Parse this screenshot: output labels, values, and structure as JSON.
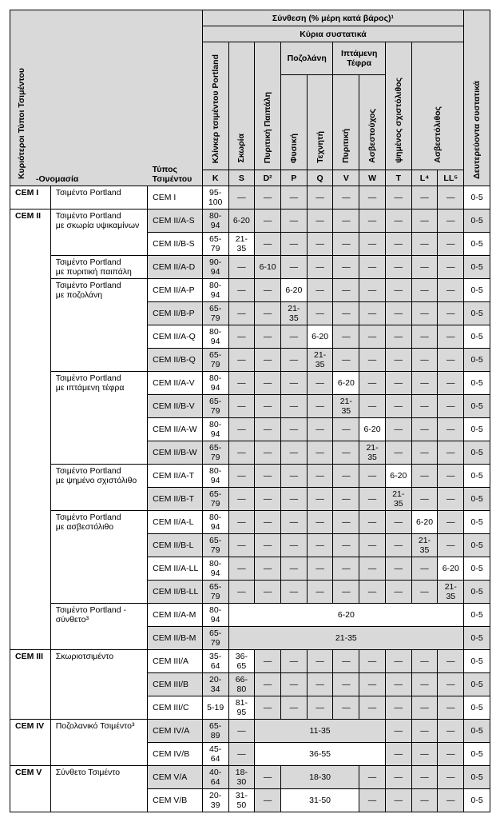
{
  "labels": {
    "compositionHeader": "Σύνθεση (% μέρη κατά βάρος)¹",
    "mainConstituents": "Κύρια συστατικά",
    "mainTypes": "Κυριότεροι Τύποι Τσιμέντου",
    "name": "-Ονομασία",
    "cementType": "Τύπος Τσιμέντου",
    "secondary": "Δευτερεύοντα συστατικά",
    "clinker": "Κλίνκερ τσιμέντου Portland",
    "slag": "Σκωρία",
    "silica": "Πυριτική Παιπάλη",
    "pozzolana": "Ποζολάνη",
    "flyAsh": "Ιπτάμενη Τέφρα",
    "burntShale": "ψημένος σχιστόλιθος",
    "limestone": "Ασβεστόλιθος",
    "natural": "Φυσική",
    "artificial": "Τεχνητή",
    "pyritic": "Πυριτική",
    "calcareous": "Ασβεστούχος",
    "K": "K",
    "S": "S",
    "D": "D²",
    "P": "P",
    "Q": "Q",
    "V": "V",
    "W": "W",
    "T": "T",
    "L": "L⁴",
    "LL": "LL⁵"
  },
  "groups": [
    {
      "id": "CEM I",
      "names": [
        [
          "Τσιμέντο Portland",
          1
        ]
      ]
    },
    {
      "id": "CEM II",
      "names": [
        [
          "Τσιμέντο Portland με σκωρία υψικαμίνων",
          2
        ],
        [
          "Τσιμέντο Portland με πυριτική παιπάλη",
          1
        ],
        [
          "Τσιμέντο Portland με ποζολάνη",
          4
        ],
        [
          "Τσιμέντο Portland με ιπτάμενη τέφρα",
          4
        ],
        [
          "Τσιμέντο Portland με ψημένο σχιστόλιθο",
          2
        ],
        [
          "Τσιμέντο Portland με ασβεστόλιθο",
          4
        ],
        [
          "Τσιμέντο Portland - σύνθετο³",
          2
        ]
      ]
    },
    {
      "id": "CEM III",
      "names": [
        [
          "Σκωριοτσιμέντο",
          3
        ]
      ]
    },
    {
      "id": "CEM IV",
      "names": [
        [
          "Ποζολανικό Τσιμέντο³",
          2
        ]
      ]
    },
    {
      "id": "CEM V",
      "names": [
        [
          "Σύνθετο Τσιμέντο",
          2
        ]
      ]
    }
  ],
  "rows": [
    [
      "CEM I",
      [
        "95-100",
        "—",
        "—",
        "—",
        "—",
        "—",
        "—",
        "—",
        "—",
        "—"
      ],
      "0-5",
      0
    ],
    [
      "CEM II/A-S",
      [
        "80-94",
        "6-20",
        "—",
        "—",
        "—",
        "—",
        "—",
        "—",
        "—",
        "—"
      ],
      "0-5",
      1
    ],
    [
      "CEM II/B-S",
      [
        "65-79",
        "21-35",
        "—",
        "—",
        "—",
        "—",
        "—",
        "—",
        "—",
        "—"
      ],
      "0-5",
      0
    ],
    [
      "CEM II/A-D",
      [
        "90-94",
        "—",
        "6-10",
        "—",
        "—",
        "—",
        "—",
        "—",
        "—",
        "—"
      ],
      "0-5",
      1
    ],
    [
      "CEM II/A-P",
      [
        "80-94",
        "—",
        "—",
        "6-20",
        "—",
        "—",
        "—",
        "—",
        "—",
        "—"
      ],
      "0-5",
      0
    ],
    [
      "CEM II/B-P",
      [
        "65-79",
        "—",
        "—",
        "21-35",
        "—",
        "—",
        "—",
        "—",
        "—",
        "—"
      ],
      "0-5",
      1
    ],
    [
      "CEM II/A-Q",
      [
        "80-94",
        "—",
        "—",
        "—",
        "6-20",
        "—",
        "—",
        "—",
        "—",
        "—"
      ],
      "0-5",
      0
    ],
    [
      "CEM II/B-Q",
      [
        "65-79",
        "—",
        "—",
        "—",
        "21-35",
        "—",
        "—",
        "—",
        "—",
        "—"
      ],
      "0-5",
      1
    ],
    [
      "CEM II/A-V",
      [
        "80-94",
        "—",
        "—",
        "—",
        "—",
        "6-20",
        "—",
        "—",
        "—",
        "—"
      ],
      "0-5",
      0
    ],
    [
      "CEM II/B-V",
      [
        "65-79",
        "—",
        "—",
        "—",
        "—",
        "21-35",
        "—",
        "—",
        "—",
        "—"
      ],
      "0-5",
      1
    ],
    [
      "CEM II/A-W",
      [
        "80-94",
        "—",
        "—",
        "—",
        "—",
        "—",
        "6-20",
        "—",
        "—",
        "—"
      ],
      "0-5",
      0
    ],
    [
      "CEM II/B-W",
      [
        "65-79",
        "—",
        "—",
        "—",
        "—",
        "—",
        "21-35",
        "—",
        "—",
        "—"
      ],
      "0-5",
      1
    ],
    [
      "CEM II/A-T",
      [
        "80-94",
        "—",
        "—",
        "—",
        "—",
        "—",
        "—",
        "6-20",
        "—",
        "—"
      ],
      "0-5",
      0
    ],
    [
      "CEM II/B-T",
      [
        "65-79",
        "—",
        "—",
        "—",
        "—",
        "—",
        "—",
        "21-35",
        "—",
        "—"
      ],
      "0-5",
      1
    ],
    [
      "CEM II/A-L",
      [
        "80-94",
        "—",
        "—",
        "—",
        "—",
        "—",
        "—",
        "—",
        "6-20",
        "—"
      ],
      "0-5",
      0
    ],
    [
      "CEM II/B-L",
      [
        "65-79",
        "—",
        "—",
        "—",
        "—",
        "—",
        "—",
        "—",
        "21-35",
        "—"
      ],
      "0-5",
      1
    ],
    [
      "CEM II/A-LL",
      [
        "80-94",
        "—",
        "—",
        "—",
        "—",
        "—",
        "—",
        "—",
        "—",
        "6-20"
      ],
      "0-5",
      0
    ],
    [
      "CEM II/B-LL",
      [
        "65-79",
        "—",
        "—",
        "—",
        "—",
        "—",
        "—",
        "—",
        "—",
        "21-35"
      ],
      "0-5",
      1
    ],
    [
      "CEM II/A-M",
      [
        "80-94",
        {
          "span": 9,
          "v": "6-20"
        }
      ],
      "0-5",
      0
    ],
    [
      "CEM II/B-M",
      [
        "65-79",
        {
          "span": 9,
          "v": "21-35"
        }
      ],
      "0-5",
      1
    ],
    [
      "CEM III/A",
      [
        "35-64",
        "36-65",
        "—",
        "—",
        "—",
        "—",
        "—",
        "—",
        "—",
        "—"
      ],
      "0-5",
      0
    ],
    [
      "CEM III/B",
      [
        "20-34",
        "66-80",
        "—",
        "—",
        "—",
        "—",
        "—",
        "—",
        "—",
        "—"
      ],
      "0-5",
      1
    ],
    [
      "CEM III/C",
      [
        "5-19",
        "81-95",
        "—",
        "—",
        "—",
        "—",
        "—",
        "—",
        "—",
        "—"
      ],
      "0-5",
      0
    ],
    [
      "CEM IV/A",
      [
        "65-89",
        "—",
        {
          "span": 5,
          "v": "11-35"
        },
        "—",
        "—",
        "—"
      ],
      "0-5",
      1
    ],
    [
      "CEM IV/B",
      [
        "45-64",
        "—",
        {
          "span": 5,
          "v": "36-55"
        },
        "—",
        "—",
        "—"
      ],
      "0-5",
      0
    ],
    [
      "CEM V/A",
      [
        "40-64",
        "18-30",
        "—",
        {
          "span": 3,
          "v": "18-30"
        },
        "—",
        "—",
        "—",
        "—"
      ],
      "0-5",
      1
    ],
    [
      "CEM V/B",
      [
        "20-39",
        "31-50",
        "—",
        {
          "span": 3,
          "v": "31-50"
        },
        "—",
        "—",
        "—",
        "—"
      ],
      "0-5",
      0
    ]
  ]
}
